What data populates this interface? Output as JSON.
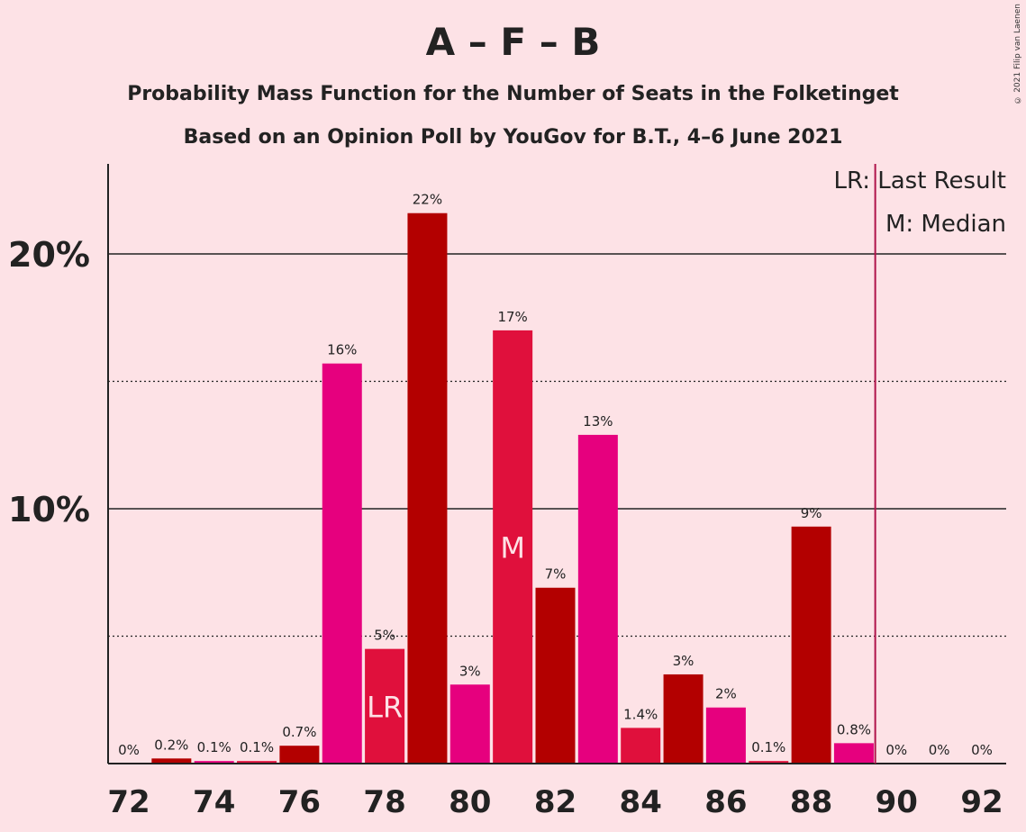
{
  "chart_data": {
    "type": "bar",
    "title": "A – F – B",
    "subtitle1": "Probability Mass Function for the Number of Seats in the Folketinget",
    "subtitle2": "Based on an Opinion Poll by YouGov for B.T., 4–6 June 2021",
    "copyright": "© 2021 Filip van Laenen",
    "categories": [
      72,
      73,
      74,
      75,
      76,
      77,
      78,
      79,
      80,
      81,
      82,
      83,
      84,
      85,
      86,
      87,
      88,
      89,
      90,
      91,
      92
    ],
    "values": [
      0,
      0.2,
      0.1,
      0.1,
      0.7,
      15.7,
      4.5,
      21.6,
      3.1,
      17.0,
      6.9,
      12.9,
      1.4,
      3.5,
      2.2,
      0.1,
      9.3,
      0.8,
      0,
      0,
      0
    ],
    "labels": [
      "0%",
      "0.2%",
      "0.1%",
      "0.1%",
      "0.7%",
      "16%",
      "5%",
      "22%",
      "3%",
      "17%",
      "7%",
      "13%",
      "1.4%",
      "3%",
      "2%",
      "0.1%",
      "9%",
      "0.8%",
      "0%",
      "0%",
      "0%"
    ],
    "x_tick_labels": [
      "72",
      "74",
      "76",
      "78",
      "80",
      "82",
      "84",
      "86",
      "88",
      "90",
      "92"
    ],
    "y_tick_labels": [
      "10%",
      "20%"
    ],
    "ylim": [
      0,
      23.5
    ],
    "last_result_seat": 78,
    "median_seat": 81,
    "last_result_line_x": 89.5,
    "lr_marker": "LR",
    "median_marker": "M",
    "legend_lr": "LR: Last Result",
    "legend_m": "M: Median",
    "colors": {
      "background": "#fde2e6",
      "dark_red": "#b30000",
      "crimson": "#e0103c",
      "magenta": "#e6007e",
      "last_result_line": "#b0134a"
    }
  }
}
